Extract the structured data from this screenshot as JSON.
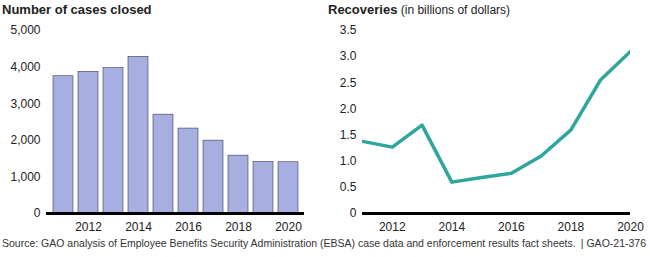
{
  "chart_data": [
    {
      "type": "bar",
      "title": "Number of cases closed",
      "x": [
        2011,
        2012,
        2013,
        2014,
        2015,
        2016,
        2017,
        2018,
        2019,
        2020
      ],
      "values": [
        3750,
        3870,
        3970,
        4280,
        2700,
        2320,
        1990,
        1580,
        1410,
        1400
      ],
      "color": "#a7afe0",
      "xticks": [
        2012,
        2014,
        2016,
        2018,
        2020
      ],
      "ylim": [
        0,
        5000
      ],
      "yticks": [
        0,
        {
          "value": 1000,
          "label": "1,000"
        },
        {
          "value": 2000,
          "label": "2,000"
        },
        {
          "value": 3000,
          "label": "3,000"
        },
        {
          "value": 4000,
          "label": "4,000"
        },
        {
          "value": 5000,
          "label": "5,000"
        }
      ],
      "grid": false
    },
    {
      "type": "line",
      "title": "Recoveries",
      "subtitle": "(in billions of dollars)",
      "x": [
        2011,
        2012,
        2013,
        2014,
        2015,
        2016,
        2017,
        2018,
        2019,
        2020
      ],
      "values": [
        1.38,
        1.27,
        1.69,
        0.6,
        0.69,
        0.77,
        1.1,
        1.6,
        2.56,
        3.1
      ],
      "color": "#2fa69c",
      "xlim": [
        2011,
        2020
      ],
      "xticks": [
        2012,
        2014,
        2016,
        2018,
        2020
      ],
      "ylim": [
        0,
        3.5
      ],
      "yticks": [
        0,
        0.5,
        {
          "value": 1,
          "label": "1.0"
        },
        1.5,
        {
          "value": 2,
          "label": "2.0"
        },
        2.5,
        {
          "value": 3,
          "label": "3.0"
        },
        3.5
      ],
      "grid": false
    }
  ],
  "caption": {
    "source": "Source: GAO analysis of Employee Benefits Security Administration (EBSA) case data and enforcement results fact sheets.",
    "report_id": "| GAO-21-376"
  }
}
